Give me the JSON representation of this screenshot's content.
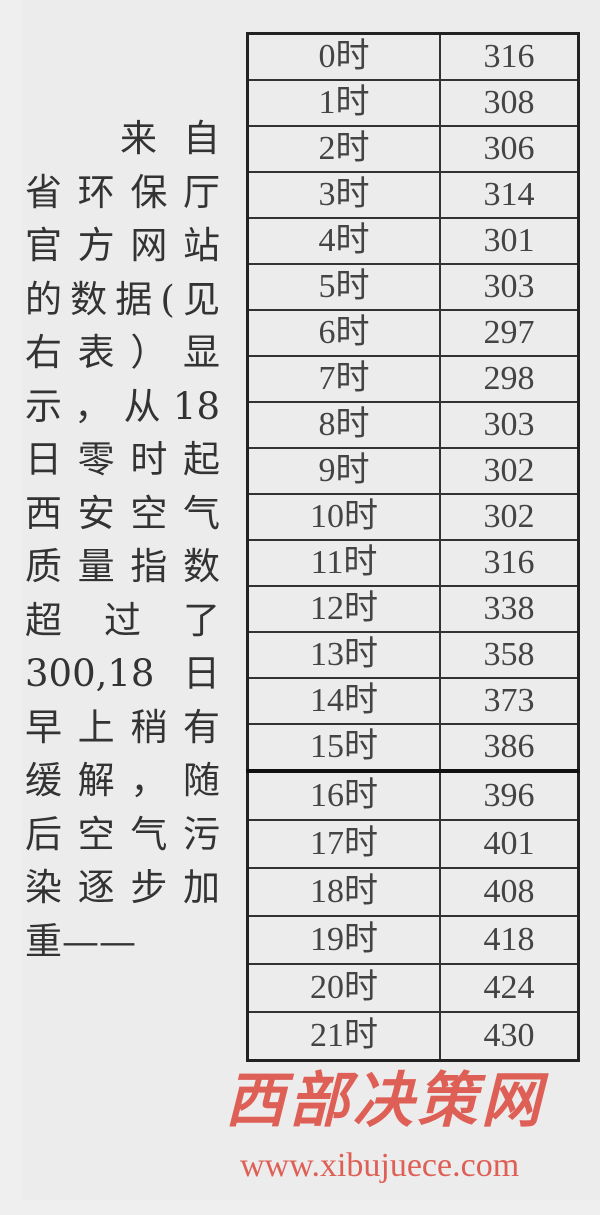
{
  "article": {
    "lines": [
      "来自",
      "省环保厅",
      "官方网站",
      "的数据(见",
      "右表）显",
      "示，从18",
      "日零时起",
      "西安空气",
      "质量指数",
      "超过了",
      "300,18日",
      "早上稍有",
      "缓解，随",
      "后空气污",
      "染逐步加",
      "重——"
    ]
  },
  "table": {
    "rows": [
      {
        "hour": "0时",
        "aqi": "316"
      },
      {
        "hour": "1时",
        "aqi": "308"
      },
      {
        "hour": "2时",
        "aqi": "306"
      },
      {
        "hour": "3时",
        "aqi": "314"
      },
      {
        "hour": "4时",
        "aqi": "301"
      },
      {
        "hour": "5时",
        "aqi": "303"
      },
      {
        "hour": "6时",
        "aqi": "297"
      },
      {
        "hour": "7时",
        "aqi": "298"
      },
      {
        "hour": "8时",
        "aqi": "303"
      },
      {
        "hour": "9时",
        "aqi": "302"
      },
      {
        "hour": "10时",
        "aqi": "302"
      },
      {
        "hour": "11时",
        "aqi": "316"
      },
      {
        "hour": "12时",
        "aqi": "338"
      },
      {
        "hour": "13时",
        "aqi": "358"
      },
      {
        "hour": "14时",
        "aqi": "373"
      },
      {
        "hour": "15时",
        "aqi": "386"
      },
      {
        "hour": "16时",
        "aqi": "396"
      },
      {
        "hour": "17时",
        "aqi": "401"
      },
      {
        "hour": "18时",
        "aqi": "408"
      },
      {
        "hour": "19时",
        "aqi": "418"
      },
      {
        "hour": "20时",
        "aqi": "424"
      },
      {
        "hour": "21时",
        "aqi": "430"
      }
    ]
  },
  "watermark": {
    "name": "西部决策网",
    "url": "www.xibujuece.com",
    "color": "#dc463c"
  }
}
